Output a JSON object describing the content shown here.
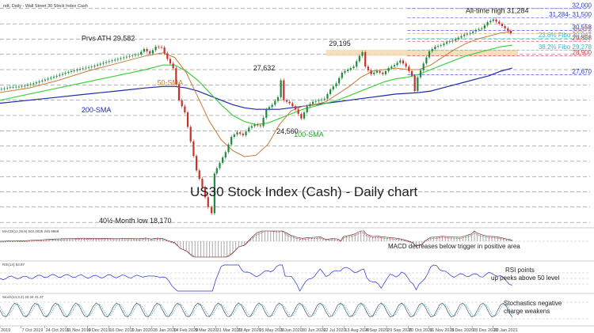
{
  "header": {
    "title": "ndt, Daily - Wall Street 30 Stock Index Cash"
  },
  "chart_data": {
    "type": "candlestick",
    "title": "US30 Stock Index (Cash) - Daily chart",
    "price_range": [
      17800,
      32300
    ],
    "x_range": [
      0,
      100
    ],
    "x_ticks": [
      {
        "x": 0,
        "label": "2019"
      },
      {
        "x": 3.6,
        "label": "7 Oct 2019"
      },
      {
        "x": 7.7,
        "label": "24 Oct 2019"
      },
      {
        "x": 11.3,
        "label": "11 Nov 2019"
      },
      {
        "x": 15.0,
        "label": "6 Dec 2019"
      },
      {
        "x": 18.7,
        "label": "16 Dec 2019"
      },
      {
        "x": 22.4,
        "label": "7 Jan 2020"
      },
      {
        "x": 26.1,
        "label": "28 Jan 2020"
      },
      {
        "x": 29.7,
        "label": "14 Feb 2020"
      },
      {
        "x": 33.4,
        "label": "9 Mar 2020"
      },
      {
        "x": 37.1,
        "label": "31 Mar 2020"
      },
      {
        "x": 40.7,
        "label": "23 Apr 2020"
      },
      {
        "x": 44.4,
        "label": "15 May 2020"
      },
      {
        "x": 48.1,
        "label": "9 Jun 2020"
      },
      {
        "x": 51.7,
        "label": "30 Jun 2020"
      },
      {
        "x": 55.4,
        "label": "22 Jul 2020"
      },
      {
        "x": 59.1,
        "label": "13 Aug 2020"
      },
      {
        "x": 62.7,
        "label": "4 Sep 2020"
      },
      {
        "x": 66.4,
        "label": "29 Sep 2020"
      },
      {
        "x": 70.1,
        "label": "20 Oct 2020"
      },
      {
        "x": 73.7,
        "label": "11 Nov 2020"
      },
      {
        "x": 77.4,
        "label": "3 Dec 2020"
      },
      {
        "x": 81.1,
        "label": "28 Dec 2020"
      },
      {
        "x": 84.7,
        "label": "20 Jan 2021"
      }
    ],
    "price_line": [
      [
        0,
        26700
      ],
      [
        2,
        26850
      ],
      [
        4,
        26900
      ],
      [
        6,
        27100
      ],
      [
        8,
        27350
      ],
      [
        10,
        27600
      ],
      [
        12,
        27850
      ],
      [
        14,
        28050
      ],
      [
        16,
        28200
      ],
      [
        18,
        28450
      ],
      [
        20,
        28650
      ],
      [
        22,
        28850
      ],
      [
        24,
        29000
      ],
      [
        25,
        29350
      ],
      [
        26,
        29050
      ],
      [
        27,
        29500
      ],
      [
        28,
        29450
      ],
      [
        29,
        28700
      ],
      [
        30,
        28100
      ],
      [
        31,
        26000
      ],
      [
        32,
        25200
      ],
      [
        33,
        23300
      ],
      [
        34,
        21400
      ],
      [
        35,
        20300
      ],
      [
        36,
        19000
      ],
      [
        36.7,
        18600
      ],
      [
        37,
        21200
      ],
      [
        38,
        21900
      ],
      [
        39,
        22600
      ],
      [
        40,
        23600
      ],
      [
        41,
        23900
      ],
      [
        42,
        23700
      ],
      [
        43,
        24200
      ],
      [
        44,
        24400
      ],
      [
        45,
        24300
      ],
      [
        46,
        25400
      ],
      [
        47,
        25700
      ],
      [
        48,
        26200
      ],
      [
        48.5,
        27300
      ],
      [
        49,
        26000
      ],
      [
        50,
        25800
      ],
      [
        51,
        25400
      ],
      [
        52,
        24800
      ],
      [
        53,
        25600
      ],
      [
        54,
        25900
      ],
      [
        55,
        26000
      ],
      [
        56,
        26100
      ],
      [
        57,
        26700
      ],
      [
        58,
        27100
      ],
      [
        59,
        27800
      ],
      [
        60,
        28000
      ],
      [
        61,
        28200
      ],
      [
        62,
        28900
      ],
      [
        62.5,
        29150
      ],
      [
        63,
        28200
      ],
      [
        64,
        27700
      ],
      [
        65,
        27900
      ],
      [
        66,
        27700
      ],
      [
        67,
        28100
      ],
      [
        68,
        28300
      ],
      [
        69,
        28600
      ],
      [
        70,
        28200
      ],
      [
        71,
        27600
      ],
      [
        71.5,
        26600
      ],
      [
        72,
        27500
      ],
      [
        73,
        28400
      ],
      [
        74,
        29200
      ],
      [
        75,
        29500
      ],
      [
        76,
        29600
      ],
      [
        77,
        29800
      ],
      [
        78,
        29900
      ],
      [
        79,
        30100
      ],
      [
        80,
        30300
      ],
      [
        81,
        30400
      ],
      [
        82,
        30600
      ],
      [
        83,
        30700
      ],
      [
        84,
        31100
      ],
      [
        85,
        31284
      ],
      [
        86,
        31000
      ],
      [
        87,
        30700
      ],
      [
        88,
        30373
      ]
    ],
    "sma_50": [
      [
        0,
        26500
      ],
      [
        5,
        26800
      ],
      [
        10,
        27300
      ],
      [
        15,
        27900
      ],
      [
        20,
        28400
      ],
      [
        25,
        28900
      ],
      [
        28,
        29100
      ],
      [
        30,
        28800
      ],
      [
        32,
        27800
      ],
      [
        34,
        26200
      ],
      [
        36,
        24600
      ],
      [
        38,
        23400
      ],
      [
        40,
        22700
      ],
      [
        42,
        22300
      ],
      [
        44,
        22400
      ],
      [
        46,
        23100
      ],
      [
        48,
        24400
      ],
      [
        50,
        25300
      ],
      [
        52,
        25600
      ],
      [
        54,
        25700
      ],
      [
        56,
        25900
      ],
      [
        58,
        26400
      ],
      [
        60,
        26900
      ],
      [
        62,
        27500
      ],
      [
        64,
        27900
      ],
      [
        66,
        28000
      ],
      [
        68,
        28100
      ],
      [
        70,
        28000
      ],
      [
        72,
        28000
      ],
      [
        74,
        28300
      ],
      [
        76,
        28800
      ],
      [
        78,
        29300
      ],
      [
        80,
        29700
      ],
      [
        82,
        30000
      ],
      [
        84,
        30200
      ],
      [
        86,
        30400
      ],
      [
        88,
        30500
      ]
    ],
    "sma_100": [
      [
        0,
        26000
      ],
      [
        5,
        26400
      ],
      [
        10,
        26800
      ],
      [
        15,
        27200
      ],
      [
        20,
        27600
      ],
      [
        25,
        28000
      ],
      [
        28,
        28300
      ],
      [
        30,
        28300
      ],
      [
        32,
        27900
      ],
      [
        34,
        27300
      ],
      [
        36,
        26500
      ],
      [
        38,
        25700
      ],
      [
        40,
        25000
      ],
      [
        42,
        24600
      ],
      [
        44,
        24400
      ],
      [
        46,
        24500
      ],
      [
        48,
        24800
      ],
      [
        50,
        25100
      ],
      [
        52,
        25400
      ],
      [
        54,
        25600
      ],
      [
        56,
        25800
      ],
      [
        58,
        26000
      ],
      [
        60,
        26300
      ],
      [
        62,
        26600
      ],
      [
        64,
        26900
      ],
      [
        66,
        27200
      ],
      [
        68,
        27400
      ],
      [
        70,
        27500
      ],
      [
        72,
        27700
      ],
      [
        74,
        28000
      ],
      [
        76,
        28300
      ],
      [
        78,
        28600
      ],
      [
        80,
        28900
      ],
      [
        82,
        29100
      ],
      [
        84,
        29300
      ],
      [
        86,
        29500
      ],
      [
        88,
        29600
      ]
    ],
    "sma_200": [
      [
        0,
        25800
      ],
      [
        5,
        26000
      ],
      [
        10,
        26200
      ],
      [
        15,
        26400
      ],
      [
        20,
        26600
      ],
      [
        25,
        26800
      ],
      [
        28,
        26900
      ],
      [
        30,
        26900
      ],
      [
        32,
        26800
      ],
      [
        34,
        26600
      ],
      [
        36,
        26300
      ],
      [
        38,
        26000
      ],
      [
        40,
        25700
      ],
      [
        42,
        25500
      ],
      [
        44,
        25400
      ],
      [
        46,
        25400
      ],
      [
        48,
        25400
      ],
      [
        50,
        25500
      ],
      [
        52,
        25600
      ],
      [
        54,
        25700
      ],
      [
        56,
        25800
      ],
      [
        58,
        25900
      ],
      [
        60,
        26000
      ],
      [
        62,
        26100
      ],
      [
        64,
        26200
      ],
      [
        66,
        26300
      ],
      [
        68,
        26400
      ],
      [
        70,
        26450
      ],
      [
        72,
        26500
      ],
      [
        74,
        26600
      ],
      [
        76,
        26800
      ],
      [
        78,
        27000
      ],
      [
        80,
        27200
      ],
      [
        82,
        27400
      ],
      [
        84,
        27600
      ],
      [
        86,
        27900
      ],
      [
        88,
        28100
      ]
    ],
    "horizontal_levels": [
      {
        "value": 32000,
        "label": "32,000",
        "color": "#2b3bd6"
      },
      {
        "value": 31400,
        "label": "31,284- 31,500",
        "color": "#2b3bd6"
      },
      {
        "value": 30558,
        "label": "30,558",
        "color": "#2b3bd6"
      },
      {
        "value": 30373,
        "label": "30,373",
        "color": "#e0822e"
      },
      {
        "value": 30047,
        "label": "23.6% Fibo 30,047",
        "color": "#39b7c8"
      },
      {
        "value": 29858,
        "label": "29,858",
        "color": "#d23a3a"
      },
      {
        "value": 29278,
        "label": "38.2% Fibo 29,278",
        "color": "#39b7c8"
      },
      {
        "value": 28900,
        "label": "28,900",
        "color": "#d23a3a"
      },
      {
        "value": 27670,
        "label": "27,670",
        "color": "#2b3bd6"
      }
    ],
    "support_zone": [
      28900,
      29300
    ],
    "annotations": [
      {
        "text": "All-time high 31,284",
        "x": 80,
        "price": 31700
      },
      {
        "text": "Prvs ATH 29,582",
        "x": 14,
        "price": 29900
      },
      {
        "text": "29,195",
        "x": 56.5,
        "price": 29550
      },
      {
        "text": "27,632",
        "x": 43.5,
        "price": 27950
      },
      {
        "text": "24,560",
        "x": 47.5,
        "price": 23800
      },
      {
        "text": "40½-Month low 18,170",
        "x": 17,
        "price": 17950
      },
      {
        "text": "50-SMA",
        "x": 27,
        "price": 27000
      },
      {
        "text": "200-SMA",
        "x": 14,
        "price": 25200
      },
      {
        "text": "100-SMA",
        "x": 50.5,
        "price": 23600
      }
    ],
    "indicators": [
      {
        "name": "MACD",
        "header": "MACD(12,26,9) 503.4025 246.9966",
        "note": "MACD decreases below trigger in positive area"
      },
      {
        "name": "RSI",
        "header": "RSI(14) 53.87",
        "note": "RSI points up peeks above 50 level"
      },
      {
        "name": "Stochastics",
        "header": "Stoch(14,3,3) 40.34 41.37",
        "note": "Stochastics negative charge weakens"
      }
    ]
  },
  "colors": {
    "up": "#1e8a3a",
    "down": "#c8312b",
    "sma50": "#c77b3a",
    "sma100": "#3fd13f",
    "sma200": "#1b2aa8",
    "grid": "#6a6a6a",
    "zone": "#f3d9b1"
  }
}
